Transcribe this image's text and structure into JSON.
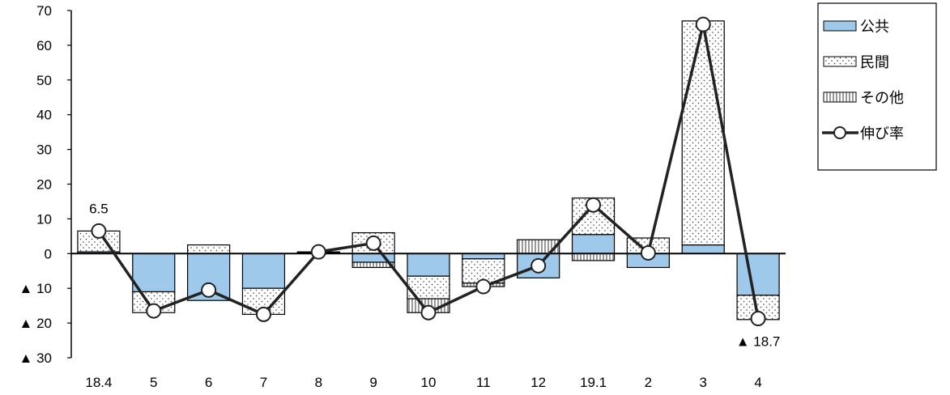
{
  "chart_data": {
    "type": "bar",
    "stacked": true,
    "categories": [
      "18.4",
      "5",
      "6",
      "7",
      "8",
      "9",
      "10",
      "11",
      "12",
      "19.1",
      "2",
      "3",
      "4"
    ],
    "ylim": [
      -30,
      70
    ],
    "yticks": [
      70,
      60,
      50,
      40,
      30,
      20,
      10,
      0,
      -10,
      -20,
      -30
    ],
    "ytick_labels": [
      "70",
      "60",
      "50",
      "40",
      "30",
      "20",
      "10",
      "0",
      "▲ 10",
      "▲ 20",
      "▲ 30"
    ],
    "series": [
      {
        "name": "公共",
        "kind": "bar",
        "pattern": "solid",
        "color": "#9ec9ea",
        "values": [
          0.5,
          -11,
          -13.5,
          -10,
          0.3,
          -2.5,
          -6.5,
          -1.5,
          -7,
          5.5,
          -4,
          2.5,
          -12
        ]
      },
      {
        "name": "民間",
        "kind": "bar",
        "pattern": "dots",
        "color": "#ffffff",
        "values": [
          6,
          -6,
          2.5,
          -7.5,
          0.2,
          6,
          -6.5,
          -7,
          0,
          10.5,
          4.5,
          64.5,
          -7
        ]
      },
      {
        "name": "その他",
        "kind": "bar",
        "pattern": "vlines",
        "color": "#ffffff",
        "values": [
          0,
          0,
          0,
          0,
          0,
          -1.5,
          -4,
          -1,
          4,
          -2,
          0,
          0,
          0
        ]
      },
      {
        "name": "伸び率",
        "kind": "line",
        "color": "#222222",
        "values": [
          6.5,
          -16.5,
          -10.5,
          -17.5,
          0.5,
          3,
          -17,
          -9.5,
          -3.5,
          14,
          0.2,
          66,
          -18.7
        ]
      }
    ],
    "annotations": [
      {
        "category": "18.4",
        "text": "6.5",
        "position": "above"
      },
      {
        "category": "4",
        "text": "▲ 18.7",
        "position": "below"
      }
    ],
    "legend": {
      "placement": "top-right"
    }
  }
}
